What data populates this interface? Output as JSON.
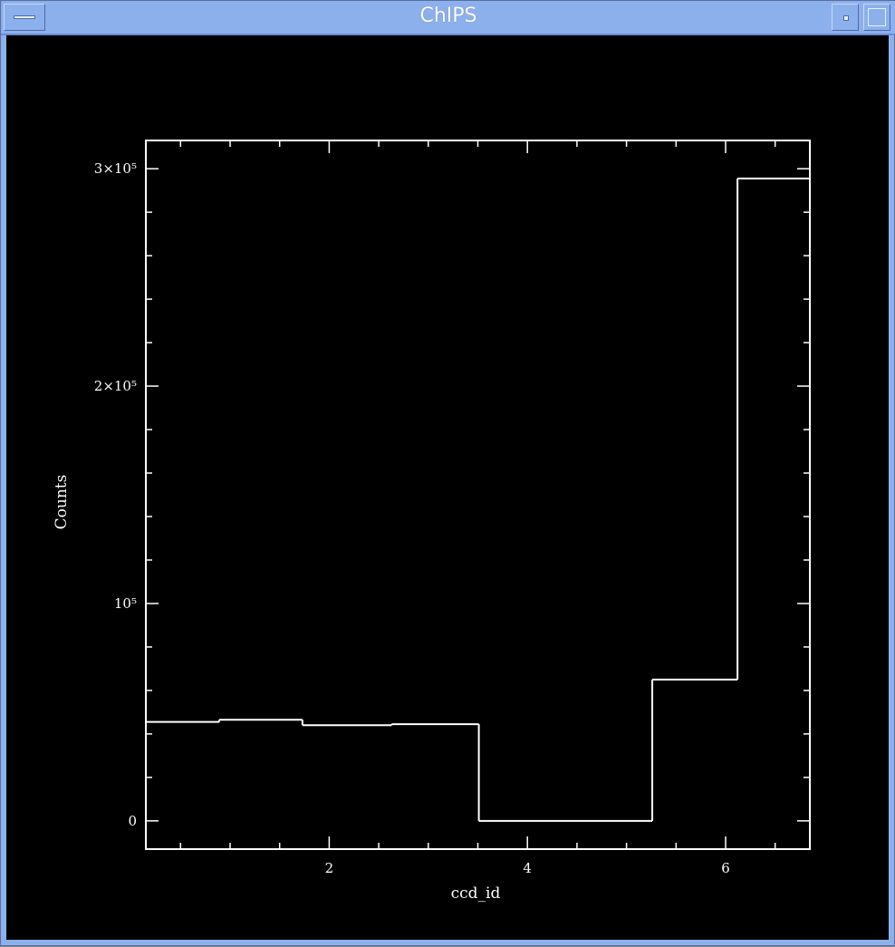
{
  "window": {
    "title": "ChIPS"
  },
  "colors": {
    "titlebar": "#8cb0ec",
    "plot_background": "#000000",
    "foreground": "#ffffff"
  },
  "chart_data": {
    "type": "histogram",
    "title": "",
    "xlabel": "ccd_id",
    "ylabel": "Counts",
    "xlim": [
      0.15,
      6.85
    ],
    "ylim": [
      -13000,
      313000
    ],
    "xticks_major": [
      2,
      4,
      6
    ],
    "xticks_major_labels": [
      "2",
      "4",
      "6"
    ],
    "xticks_minor_step": 0.5,
    "yticks_major": [
      0,
      100000,
      200000,
      300000
    ],
    "yticks_major_labels": [
      "0",
      "10⁵",
      "2×10⁵",
      "3×10⁵"
    ],
    "yticks_minor_step": 20000,
    "bins": [
      {
        "x0": 0.15,
        "x1": 0.89,
        "value": 45500
      },
      {
        "x0": 0.89,
        "x1": 1.73,
        "value": 46500
      },
      {
        "x0": 1.73,
        "x1": 2.63,
        "value": 44000
      },
      {
        "x0": 2.63,
        "x1": 3.51,
        "value": 44500
      },
      {
        "x0": 3.51,
        "x1": 5.26,
        "value": 0
      },
      {
        "x0": 5.26,
        "x1": 6.12,
        "value": 65000
      },
      {
        "x0": 6.12,
        "x1": 6.85,
        "value": 295500
      }
    ],
    "grid": false,
    "legend": "none"
  }
}
